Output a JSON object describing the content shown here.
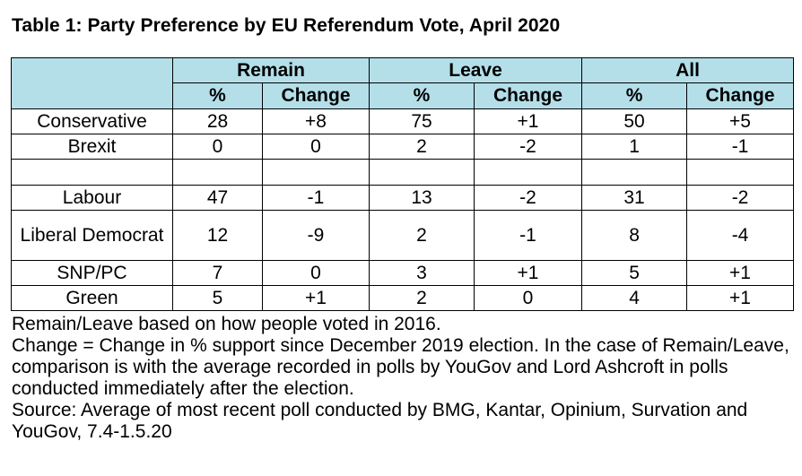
{
  "title": "Table 1: Party Preference by EU Referendum Vote, April 2020",
  "table": {
    "groups": [
      "Remain",
      "Leave",
      "All"
    ],
    "subheaders": [
      "%",
      "Change",
      "%",
      "Change",
      "%",
      "Change"
    ],
    "rows": [
      {
        "party": "Conservative",
        "cells": [
          "28",
          "+8",
          "75",
          "+1",
          "50",
          "+5"
        ]
      },
      {
        "party": "Brexit",
        "cells": [
          "0",
          "0",
          "2",
          "-2",
          "1",
          "-1"
        ]
      },
      {
        "party": "",
        "cells": [
          "",
          "",
          "",
          "",
          "",
          ""
        ]
      },
      {
        "party": "Labour",
        "cells": [
          "47",
          "-1",
          "13",
          "-2",
          "31",
          "-2"
        ]
      },
      {
        "party": "Liberal Democrat",
        "cells": [
          "12",
          "-9",
          "2",
          "-1",
          "8",
          "-4"
        ]
      },
      {
        "party": "SNP/PC",
        "cells": [
          "7",
          "0",
          "3",
          "+1",
          "5",
          "+1"
        ]
      },
      {
        "party": "Green",
        "cells": [
          "5",
          "+1",
          "2",
          "0",
          "4",
          "+1"
        ]
      }
    ]
  },
  "notes": [
    "Remain/Leave based on how people voted in 2016.",
    "Change = Change in % support since December 2019 election. In the case of Remain/Leave, comparison is with the average recorded in polls by YouGov and Lord Ashcroft in polls conducted immediately after the election.",
    "Source: Average of most recent poll conducted by BMG, Kantar, Opinium, Survation and YouGov, 7.4-1.5.20"
  ],
  "colors": {
    "header_bg": "#b4dfe9"
  }
}
